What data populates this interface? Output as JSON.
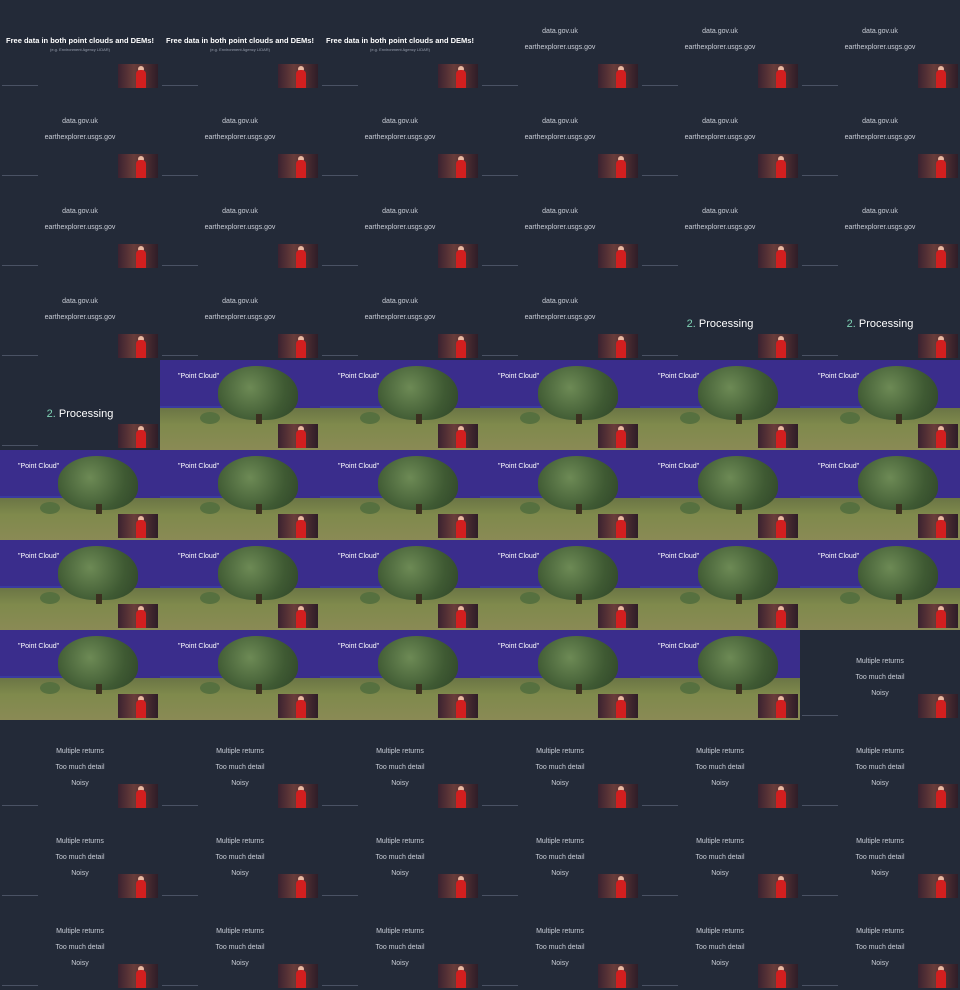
{
  "title_slide": {
    "headline": "Free data in both point clouds and DEMs!",
    "subline": "(e.g. Environment Agency LIDAR)"
  },
  "links_slide": {
    "line1": "data.gov.uk",
    "line2": "earthexplorer.usgs.gov"
  },
  "processing_slide": {
    "number": "2.",
    "label": "Processing"
  },
  "pointcloud_slide": {
    "label": "\"Point Cloud\""
  },
  "issues_slide": {
    "line1": "Multiple returns",
    "line2": "Too much detail",
    "line3": "Noisy"
  },
  "tiles": [
    "title",
    "title",
    "title",
    "links",
    "links",
    "links",
    "links",
    "links",
    "links",
    "links",
    "links",
    "links",
    "links",
    "links",
    "links",
    "links",
    "links",
    "links",
    "links",
    "links",
    "links",
    "links",
    "processing",
    "processing",
    "processing",
    "pointcloud",
    "pointcloud",
    "pointcloud",
    "pointcloud",
    "pointcloud",
    "pointcloud",
    "pointcloud",
    "pointcloud",
    "pointcloud",
    "pointcloud",
    "pointcloud",
    "pointcloud",
    "pointcloud",
    "pointcloud",
    "pointcloud",
    "pointcloud",
    "pointcloud",
    "pointcloud",
    "pointcloud",
    "pointcloud",
    "pointcloud",
    "pointcloud",
    "issues",
    "issues",
    "issues",
    "issues",
    "issues",
    "issues",
    "issues",
    "issues",
    "issues",
    "issues",
    "issues",
    "issues",
    "issues",
    "issues",
    "issues",
    "issues",
    "issues",
    "issues",
    "issues"
  ],
  "colors": {
    "background": "#222836",
    "cloud_sky": "#3a2d8c",
    "accent": "#7fd3b5",
    "speaker_shirt": "#d21f1f"
  }
}
